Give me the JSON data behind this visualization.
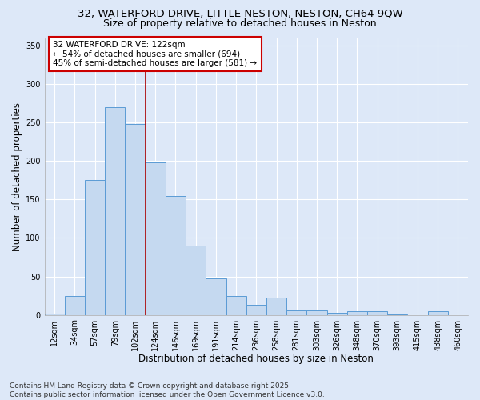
{
  "title_line1": "32, WATERFORD DRIVE, LITTLE NESTON, NESTON, CH64 9QW",
  "title_line2": "Size of property relative to detached houses in Neston",
  "xlabel": "Distribution of detached houses by size in Neston",
  "ylabel": "Number of detached properties",
  "categories": [
    "12sqm",
    "34sqm",
    "57sqm",
    "79sqm",
    "102sqm",
    "124sqm",
    "146sqm",
    "169sqm",
    "191sqm",
    "214sqm",
    "236sqm",
    "258sqm",
    "281sqm",
    "303sqm",
    "326sqm",
    "348sqm",
    "370sqm",
    "393sqm",
    "415sqm",
    "438sqm",
    "460sqm"
  ],
  "values": [
    2,
    25,
    175,
    270,
    248,
    198,
    155,
    90,
    47,
    25,
    13,
    22,
    6,
    6,
    3,
    5,
    5,
    1,
    0,
    5,
    0
  ],
  "bar_color": "#c5d9f0",
  "bar_edge_color": "#5b9bd5",
  "vline_color": "#aa0000",
  "annotation_text": "32 WATERFORD DRIVE: 122sqm\n← 54% of detached houses are smaller (694)\n45% of semi-detached houses are larger (581) →",
  "annotation_box_color": "#ffffff",
  "annotation_box_edge_color": "#cc0000",
  "ylim": [
    0,
    360
  ],
  "yticks": [
    0,
    50,
    100,
    150,
    200,
    250,
    300,
    350
  ],
  "background_color": "#dde8f8",
  "grid_color": "#ffffff",
  "footer_line1": "Contains HM Land Registry data © Crown copyright and database right 2025.",
  "footer_line2": "Contains public sector information licensed under the Open Government Licence v3.0.",
  "title_fontsize": 9.5,
  "subtitle_fontsize": 9,
  "axis_label_fontsize": 8.5,
  "tick_fontsize": 7,
  "annotation_fontsize": 7.5,
  "footer_fontsize": 6.5
}
